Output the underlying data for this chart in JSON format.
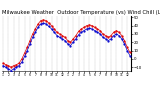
{
  "title": "Milwaukee Weather  Outdoor Temperature (vs) Wind Chill (Last 24 Hours)",
  "title_fontsize": 3.8,
  "background_color": "#ffffff",
  "line1_color": "#dd0000",
  "line2_color": "#0000cc",
  "grid_color": "#888888",
  "ylim": [
    -15,
    52
  ],
  "yticks": [
    -10,
    0,
    10,
    20,
    30,
    40,
    50
  ],
  "temp_data": [
    -5,
    -7,
    -8,
    -10,
    -8,
    -7,
    -5,
    0,
    7,
    14,
    22,
    30,
    36,
    42,
    46,
    47,
    46,
    43,
    40,
    36,
    32,
    30,
    28,
    26,
    22,
    20,
    24,
    28,
    33,
    36,
    38,
    40,
    41,
    40,
    38,
    36,
    34,
    30,
    28,
    26,
    28,
    32,
    34,
    32,
    28,
    22,
    14,
    8
  ],
  "chill_data": [
    -8,
    -10,
    -12,
    -14,
    -12,
    -10,
    -8,
    -4,
    3,
    10,
    18,
    26,
    32,
    38,
    42,
    43,
    42,
    39,
    36,
    32,
    28,
    26,
    24,
    22,
    18,
    16,
    20,
    24,
    29,
    32,
    34,
    36,
    37,
    36,
    34,
    32,
    30,
    26,
    24,
    22,
    24,
    28,
    30,
    28,
    24,
    18,
    10,
    4
  ],
  "n_points": 48
}
